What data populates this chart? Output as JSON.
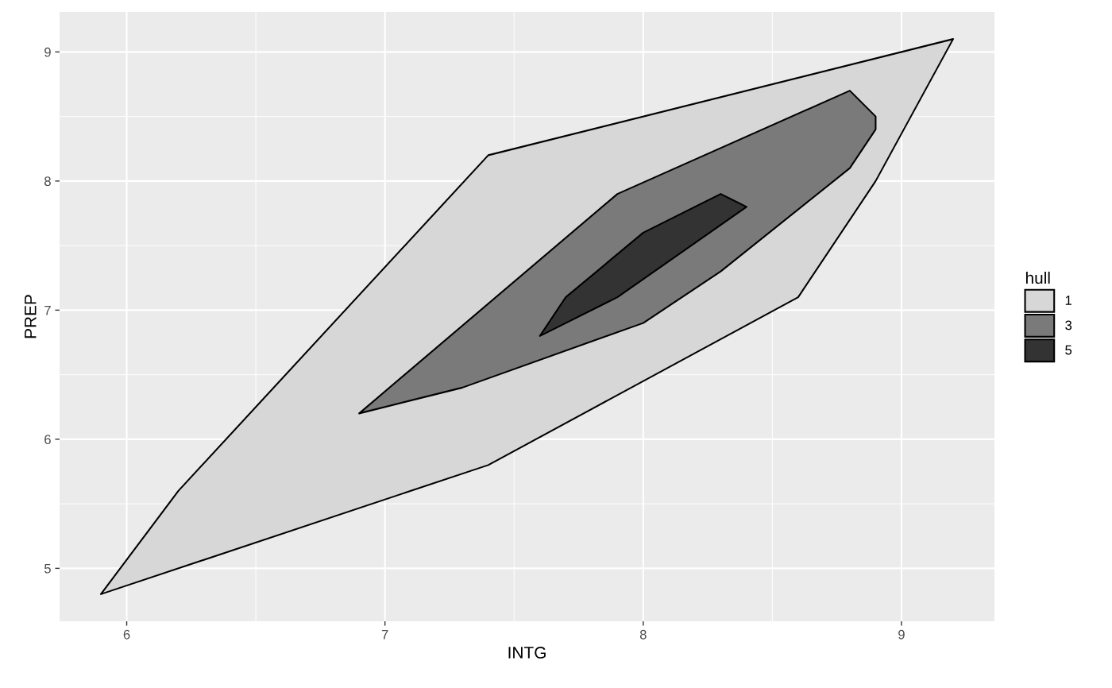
{
  "chart_data": {
    "type": "area",
    "xlabel": "INTG",
    "ylabel": "PREP",
    "legend_title": "hull",
    "legend": "right",
    "grid": true,
    "xlim": [
      5.74,
      9.36
    ],
    "ylim": [
      4.59,
      9.31
    ],
    "xticks": [
      6,
      7,
      8,
      9
    ],
    "yticks": [
      5,
      6,
      7,
      8,
      9
    ],
    "series": [
      {
        "name": "1",
        "color": "#d7d7d7",
        "x": [
          5.9,
          6.2,
          7.4,
          9.2,
          8.9,
          8.6,
          7.4
        ],
        "values": [
          4.8,
          5.6,
          8.2,
          9.1,
          8.0,
          7.1,
          5.8
        ]
      },
      {
        "name": "3",
        "color": "#7a7a7a",
        "x": [
          6.9,
          7.9,
          8.8,
          8.9,
          8.9,
          8.8,
          8.3,
          8.0,
          7.3
        ],
        "values": [
          6.2,
          7.9,
          8.7,
          8.5,
          8.4,
          8.1,
          7.3,
          6.9,
          6.4
        ]
      },
      {
        "name": "5",
        "color": "#333333",
        "x": [
          7.6,
          7.7,
          8.0,
          8.3,
          8.4,
          7.9
        ],
        "values": [
          6.8,
          7.1,
          7.6,
          7.9,
          7.8,
          7.1
        ]
      }
    ]
  }
}
